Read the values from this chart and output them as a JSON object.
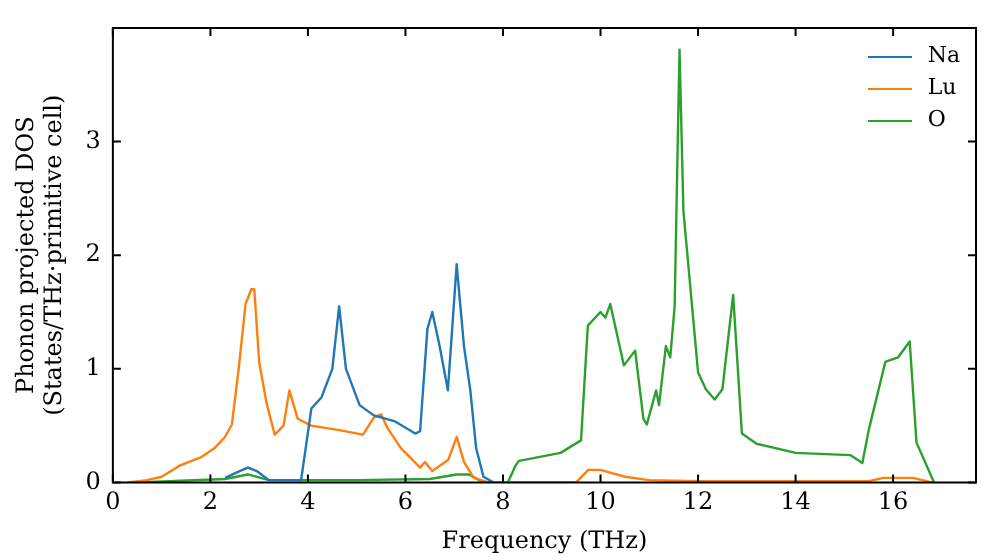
{
  "chart_data": {
    "type": "line",
    "xlabel": "Frequency (THz)",
    "ylabel": "Phonon projected DOS\n(States/THz·primitive cell)",
    "xlim": [
      0,
      17.7
    ],
    "ylim": [
      0,
      4
    ],
    "xticks": [
      0,
      2,
      4,
      6,
      8,
      10,
      12,
      14,
      16
    ],
    "yticks": [
      0,
      1,
      2,
      3
    ],
    "legend": "top right",
    "grid": false,
    "marker": "none",
    "line_style": "solid",
    "series": [
      {
        "name": "Na",
        "color": "#1f77b4",
        "x": [
          2.3,
          2.6,
          2.77,
          2.95,
          3.2,
          3.86,
          4.07,
          4.28,
          4.5,
          4.64,
          4.78,
          5.06,
          5.35,
          5.77,
          6.2,
          6.3,
          6.45,
          6.55,
          6.7,
          6.87,
          7.05,
          7.2,
          7.33,
          7.45,
          7.6,
          7.8
        ],
        "values": [
          0.04,
          0.1,
          0.13,
          0.1,
          0.02,
          0.02,
          0.65,
          0.75,
          1.0,
          1.55,
          1.0,
          0.68,
          0.59,
          0.54,
          0.43,
          0.45,
          1.35,
          1.5,
          1.2,
          0.81,
          1.92,
          1.2,
          0.81,
          0.3,
          0.05,
          0
        ]
      },
      {
        "name": "Lu",
        "color": "#ff7f0e",
        "x": [
          0.3,
          0.7,
          1.0,
          1.38,
          1.8,
          2.08,
          2.3,
          2.44,
          2.58,
          2.72,
          2.84,
          2.9,
          3.0,
          3.15,
          3.32,
          3.5,
          3.62,
          3.79,
          4.07,
          4.64,
          5.13,
          5.35,
          5.5,
          5.63,
          5.91,
          6.3,
          6.4,
          6.55,
          6.88,
          7.05,
          7.2,
          7.4,
          7.7,
          9.5,
          9.75,
          10.0,
          10.5,
          11.0,
          12.0,
          14.0,
          15.5,
          15.8,
          16.4,
          16.8
        ],
        "values": [
          0,
          0.02,
          0.05,
          0.15,
          0.22,
          0.3,
          0.4,
          0.51,
          1.0,
          1.57,
          1.7,
          1.7,
          1.06,
          0.7,
          0.42,
          0.5,
          0.81,
          0.56,
          0.5,
          0.46,
          0.42,
          0.57,
          0.6,
          0.48,
          0.3,
          0.13,
          0.18,
          0.1,
          0.2,
          0.4,
          0.18,
          0.04,
          0,
          0,
          0.11,
          0.11,
          0.05,
          0.02,
          0.01,
          0.01,
          0.01,
          0.04,
          0.04,
          0
        ]
      },
      {
        "name": "O",
        "color": "#2ca02c",
        "x": [
          0.5,
          2.3,
          2.77,
          3.2,
          5.0,
          6.5,
          7.05,
          7.3,
          7.6,
          8.1,
          8.26,
          8.33,
          9.18,
          9.6,
          9.74,
          10.0,
          10.1,
          10.2,
          10.48,
          10.71,
          10.88,
          10.95,
          11.14,
          11.2,
          11.34,
          11.43,
          11.52,
          11.62,
          11.7,
          12.0,
          12.16,
          12.34,
          12.5,
          12.72,
          12.9,
          13.2,
          14.0,
          15.13,
          15.37,
          15.5,
          15.84,
          16.1,
          16.34,
          16.48,
          16.84
        ],
        "values": [
          0,
          0.03,
          0.07,
          0.02,
          0.02,
          0.03,
          0.07,
          0.07,
          0,
          0,
          0.15,
          0.19,
          0.26,
          0.37,
          1.38,
          1.5,
          1.45,
          1.57,
          1.03,
          1.16,
          0.56,
          0.51,
          0.81,
          0.68,
          1.2,
          1.1,
          1.55,
          3.81,
          2.39,
          0.97,
          0.82,
          0.73,
          0.82,
          1.65,
          0.43,
          0.34,
          0.26,
          0.24,
          0.17,
          0.46,
          1.06,
          1.1,
          1.24,
          0.35,
          0
        ]
      }
    ]
  }
}
